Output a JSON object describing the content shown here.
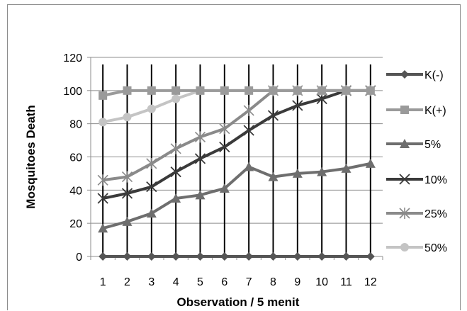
{
  "chart_data": {
    "type": "line",
    "xlabel": "Observation / 5 menit",
    "ylabel": "Mosquitoes  Death",
    "ylim": [
      0,
      120
    ],
    "yticks": [
      0,
      20,
      40,
      60,
      80,
      100,
      120
    ],
    "categories": [
      "1",
      "2",
      "3",
      "4",
      "5",
      "6",
      "7",
      "8",
      "9",
      "10",
      "11",
      "12"
    ],
    "grid": true,
    "legend_position": "right",
    "series": [
      {
        "name": "K(-)",
        "marker": "diamond",
        "color": "#555555",
        "values": [
          0,
          0,
          0,
          0,
          0,
          0,
          0,
          0,
          0,
          0,
          0,
          0
        ]
      },
      {
        "name": "K(+)",
        "marker": "square",
        "color": "#9a9a9a",
        "values": [
          97,
          100,
          100,
          100,
          100,
          100,
          100,
          100,
          100,
          100,
          100,
          100
        ]
      },
      {
        "name": "5%",
        "marker": "triangle",
        "color": "#6e6e6e",
        "values": [
          17,
          21,
          26,
          35,
          37,
          41,
          54,
          48,
          50,
          51,
          53,
          56
        ]
      },
      {
        "name": "10%",
        "marker": "x",
        "color": "#3a3a3a",
        "values": [
          35,
          38,
          42,
          51,
          59,
          66,
          76,
          85,
          91,
          95,
          100,
          100
        ]
      },
      {
        "name": "25%",
        "marker": "star",
        "color": "#8a8a8a",
        "values": [
          46,
          48,
          56,
          65,
          72,
          77,
          88,
          100,
          100,
          100,
          100,
          100
        ]
      },
      {
        "name": "50%",
        "marker": "circle",
        "color": "#c4c4c4",
        "values": [
          81,
          84,
          89,
          95,
          100,
          100,
          100,
          100,
          100,
          100,
          100,
          100
        ]
      }
    ]
  }
}
